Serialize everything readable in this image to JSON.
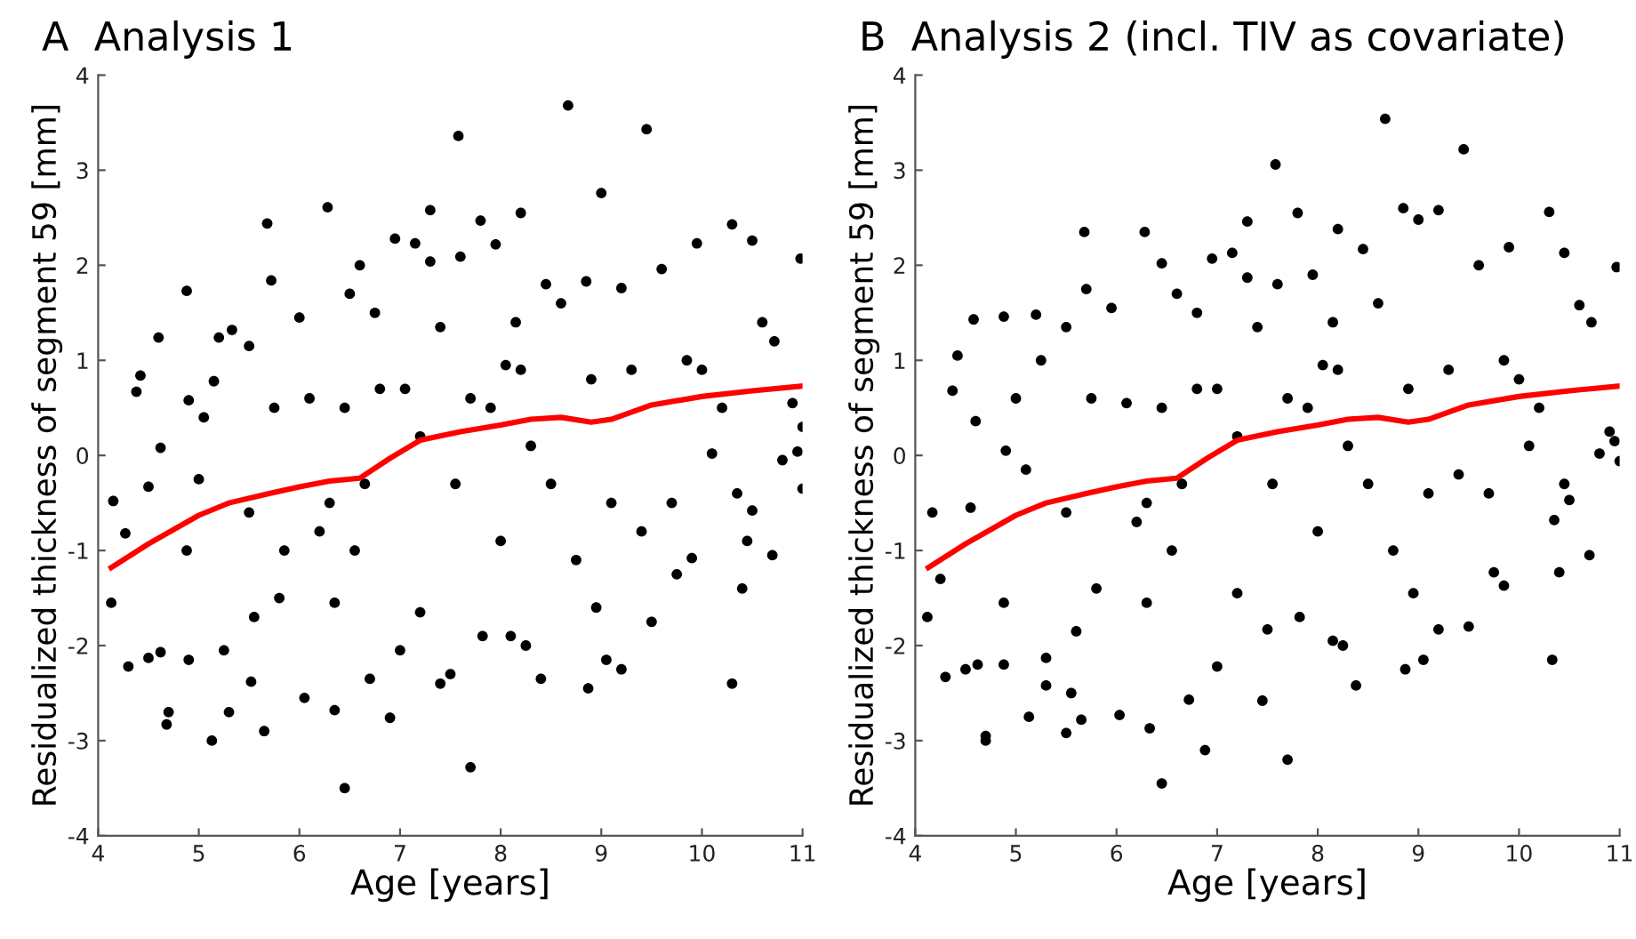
{
  "chart_data": [
    {
      "type": "scatter",
      "title": "A  Analysis 1",
      "xlabel": "Age [years]",
      "ylabel": "Residualized thickness of segment 59 [mm]",
      "xlim": [
        4,
        11
      ],
      "ylim": [
        -4,
        4
      ],
      "xticks": [
        4,
        5,
        6,
        7,
        8,
        9,
        10,
        11
      ],
      "yticks": [
        -4,
        -3,
        -2,
        -1,
        0,
        1,
        2,
        3,
        4
      ],
      "grid": false,
      "legend": false,
      "marker": "circle",
      "series": [
        {
          "type": "scatter",
          "color": "#000000",
          "x": [
            4.13,
            4.15,
            4.27,
            4.3,
            4.38,
            4.42,
            4.6,
            4.62,
            4.5,
            4.5,
            4.62,
            4.68,
            4.7,
            4.88,
            4.9,
            4.88,
            4.9,
            5.0,
            5.05,
            5.13,
            5.15,
            5.2,
            5.25,
            5.3,
            5.33,
            5.5,
            5.52,
            5.55,
            5.65,
            5.68,
            5.72,
            5.75,
            5.8,
            5.85,
            6.0,
            6.05,
            6.1,
            6.2,
            6.28,
            6.35,
            6.35,
            6.45,
            6.45,
            6.5,
            6.55,
            6.6,
            6.65,
            6.7,
            6.75,
            6.9,
            6.95,
            7.0,
            7.05,
            7.15,
            7.2,
            7.3,
            7.3,
            7.4,
            7.4,
            7.5,
            7.55,
            7.58,
            7.6,
            7.7,
            7.8,
            7.82,
            7.9,
            7.95,
            8.0,
            8.05,
            8.1,
            8.15,
            8.2,
            8.25,
            8.3,
            8.4,
            8.45,
            8.5,
            8.6,
            8.67,
            8.75,
            8.85,
            8.87,
            8.9,
            8.95,
            9.0,
            9.05,
            9.1,
            9.2,
            9.2,
            9.3,
            9.4,
            9.45,
            9.5,
            9.6,
            9.7,
            9.75,
            9.85,
            9.9,
            9.95,
            10.0,
            10.1,
            10.2,
            10.3,
            10.3,
            10.35,
            10.4,
            10.45,
            10.5,
            10.5,
            10.6,
            10.7,
            10.72,
            10.8,
            10.9,
            10.95,
            10.98,
            11.0,
            11.0,
            6.8,
            7.2,
            5.5,
            6.3,
            7.7,
            8.2
          ],
          "values": [
            -1.55,
            -0.48,
            -0.82,
            -2.22,
            0.67,
            0.84,
            1.24,
            0.08,
            -0.33,
            -2.13,
            -2.07,
            -2.83,
            -2.7,
            1.73,
            0.58,
            -1.0,
            -2.15,
            -0.25,
            0.4,
            -3.0,
            0.78,
            1.24,
            -2.05,
            -2.7,
            1.32,
            1.15,
            -2.38,
            -1.7,
            -2.9,
            2.44,
            1.84,
            0.5,
            -1.5,
            -1.0,
            1.45,
            -2.55,
            0.6,
            -0.8,
            2.61,
            -1.55,
            -2.68,
            -3.5,
            0.5,
            1.7,
            -1.0,
            2.0,
            -0.3,
            -2.35,
            1.5,
            -2.76,
            2.28,
            -2.05,
            0.7,
            2.23,
            -1.65,
            2.58,
            2.04,
            1.35,
            -2.4,
            -2.3,
            -0.3,
            3.36,
            2.09,
            -3.28,
            2.47,
            -1.9,
            0.5,
            2.22,
            -0.9,
            0.95,
            -1.9,
            1.4,
            2.55,
            -2.0,
            0.1,
            -2.35,
            1.8,
            -0.3,
            1.6,
            3.68,
            -1.1,
            1.83,
            -2.45,
            0.8,
            -1.6,
            2.76,
            -2.15,
            -0.5,
            1.76,
            -2.25,
            0.9,
            -0.8,
            3.43,
            -1.75,
            1.96,
            -0.5,
            -1.25,
            1.0,
            -1.08,
            2.23,
            0.9,
            0.02,
            0.5,
            2.43,
            -2.4,
            -0.4,
            -1.4,
            -0.9,
            2.26,
            -0.58,
            1.4,
            -1.05,
            1.2,
            -0.05,
            0.55,
            0.04,
            2.07,
            -0.35,
            0.3,
            0.7,
            0.2,
            -0.6,
            -0.5,
            0.6,
            0.9
          ]
        },
        {
          "type": "line",
          "color": "#ff0000",
          "marker": "none",
          "line_style": "solid",
          "x": [
            4.13,
            4.5,
            5.0,
            5.3,
            5.7,
            6.0,
            6.3,
            6.6,
            6.9,
            7.2,
            7.6,
            8.0,
            8.3,
            8.6,
            8.9,
            9.1,
            9.5,
            10.0,
            10.5,
            11.0
          ],
          "values": [
            -1.18,
            -0.93,
            -0.63,
            -0.5,
            -0.4,
            -0.33,
            -0.27,
            -0.24,
            -0.03,
            0.16,
            0.25,
            0.32,
            0.38,
            0.4,
            0.35,
            0.38,
            0.53,
            0.62,
            0.68,
            0.73
          ]
        }
      ]
    },
    {
      "type": "scatter",
      "title": "B  Analysis 2 (incl. TIV as covariate)",
      "xlabel": "Age [years]",
      "ylabel": "Residualized thickness of segment 59 [mm]",
      "xlim": [
        4,
        11
      ],
      "ylim": [
        -4,
        4
      ],
      "xticks": [
        4,
        5,
        6,
        7,
        8,
        9,
        10,
        11
      ],
      "yticks": [
        -4,
        -3,
        -2,
        -1,
        0,
        1,
        2,
        3,
        4
      ],
      "grid": false,
      "legend": false,
      "marker": "circle",
      "series": [
        {
          "type": "scatter",
          "color": "#000000",
          "x": [
            4.12,
            4.17,
            4.25,
            4.3,
            4.37,
            4.42,
            4.58,
            4.6,
            4.55,
            4.5,
            4.62,
            4.7,
            4.7,
            4.88,
            4.9,
            4.88,
            4.88,
            5.0,
            5.1,
            5.13,
            5.2,
            5.25,
            5.3,
            5.3,
            5.5,
            5.5,
            5.55,
            5.6,
            5.65,
            5.68,
            5.7,
            5.75,
            5.8,
            5.95,
            6.03,
            6.1,
            6.2,
            6.28,
            6.3,
            6.33,
            6.45,
            6.45,
            6.45,
            6.55,
            6.6,
            6.65,
            6.72,
            6.8,
            6.88,
            6.95,
            7.0,
            7.0,
            7.15,
            7.2,
            7.3,
            7.3,
            7.4,
            7.45,
            7.5,
            7.55,
            7.58,
            7.6,
            7.7,
            7.8,
            7.82,
            7.9,
            7.95,
            8.0,
            8.05,
            8.15,
            8.15,
            8.2,
            8.25,
            8.3,
            8.38,
            8.45,
            8.5,
            8.6,
            8.67,
            8.75,
            8.85,
            8.87,
            8.9,
            8.95,
            9.0,
            9.05,
            9.1,
            9.2,
            9.2,
            9.3,
            9.4,
            9.45,
            9.5,
            9.6,
            9.7,
            9.75,
            9.85,
            9.85,
            9.9,
            10.0,
            10.1,
            10.2,
            10.3,
            10.33,
            10.35,
            10.4,
            10.45,
            10.45,
            10.5,
            10.6,
            10.7,
            10.72,
            10.8,
            10.9,
            10.95,
            10.97,
            11.0,
            6.8,
            7.2,
            5.5,
            6.3,
            7.7,
            8.2
          ],
          "values": [
            -1.7,
            -0.6,
            -1.3,
            -2.33,
            0.68,
            1.05,
            1.43,
            0.36,
            -0.55,
            -2.25,
            -2.2,
            -2.95,
            -3.0,
            1.46,
            0.05,
            -1.55,
            -2.2,
            0.6,
            -0.15,
            -2.75,
            1.48,
            1.0,
            -2.13,
            -2.42,
            1.35,
            -2.92,
            -2.5,
            -1.85,
            -2.78,
            2.35,
            1.75,
            0.6,
            -1.4,
            1.55,
            -2.73,
            0.55,
            -0.7,
            2.35,
            -1.55,
            -2.87,
            -3.45,
            0.5,
            2.02,
            -1.0,
            1.7,
            -0.3,
            -2.57,
            1.5,
            -3.1,
            2.07,
            -2.22,
            0.7,
            2.13,
            -1.45,
            2.46,
            1.87,
            1.35,
            -2.58,
            -1.83,
            -0.3,
            3.06,
            1.8,
            -3.2,
            2.55,
            -1.7,
            0.5,
            1.9,
            -0.8,
            0.95,
            -1.95,
            1.4,
            2.38,
            -2.0,
            0.1,
            -2.42,
            2.17,
            -0.3,
            1.6,
            3.54,
            -1.0,
            2.6,
            -2.25,
            0.7,
            -1.45,
            2.48,
            -2.15,
            -0.4,
            2.58,
            -1.83,
            0.9,
            -0.2,
            3.22,
            -1.8,
            2.0,
            -0.4,
            -1.23,
            1.0,
            -1.37,
            2.19,
            0.8,
            0.1,
            0.5,
            2.56,
            -2.15,
            -0.68,
            -1.23,
            -0.3,
            2.13,
            -0.47,
            1.58,
            -1.05,
            1.4,
            0.02,
            0.25,
            0.15,
            1.98,
            -0.06,
            0.7,
            0.2,
            -0.6,
            -0.5,
            0.6,
            0.9
          ]
        },
        {
          "type": "line",
          "color": "#ff0000",
          "marker": "none",
          "line_style": "solid",
          "x": [
            4.13,
            4.5,
            5.0,
            5.3,
            5.7,
            6.0,
            6.3,
            6.6,
            6.9,
            7.2,
            7.6,
            8.0,
            8.3,
            8.6,
            8.9,
            9.1,
            9.5,
            10.0,
            10.5,
            11.0
          ],
          "values": [
            -1.18,
            -0.93,
            -0.63,
            -0.5,
            -0.4,
            -0.33,
            -0.27,
            -0.24,
            -0.03,
            0.16,
            0.25,
            0.32,
            0.38,
            0.4,
            0.35,
            0.38,
            0.53,
            0.62,
            0.68,
            0.73
          ]
        }
      ]
    }
  ]
}
